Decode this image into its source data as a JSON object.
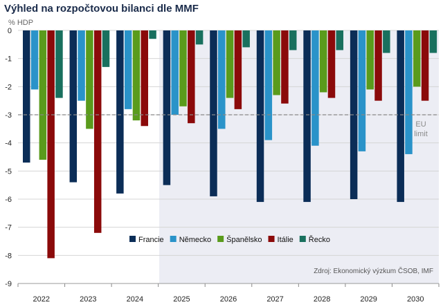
{
  "chart_data": {
    "type": "bar",
    "title": "Výhled na rozpočtovou bilanci dle MMF",
    "ylabel": "% HDP",
    "xlabel": "",
    "ylim": [
      -9,
      0
    ],
    "yticks": [
      0,
      -1,
      -2,
      -3,
      -4,
      -5,
      -6,
      -7,
      -8,
      -9
    ],
    "categories": [
      "2022",
      "2023",
      "2024",
      "2025",
      "2026",
      "2027",
      "2028",
      "2029",
      "2030"
    ],
    "forecast_from": "2025",
    "series": [
      {
        "name": "Francie",
        "color": "#0b2d57",
        "values": [
          -4.7,
          -5.4,
          -5.8,
          -5.5,
          -5.9,
          -6.1,
          -6.1,
          -6.0,
          -6.1
        ]
      },
      {
        "name": "Německo",
        "color": "#2a93c9",
        "values": [
          -2.1,
          -2.5,
          -2.8,
          -3.0,
          -3.5,
          -3.9,
          -4.1,
          -4.3,
          -4.4
        ]
      },
      {
        "name": "Španělsko",
        "color": "#5a9b1c",
        "values": [
          -4.6,
          -3.5,
          -3.2,
          -2.7,
          -2.4,
          -2.3,
          -2.2,
          -2.1,
          -2.0
        ]
      },
      {
        "name": "Itálie",
        "color": "#8b0a0a",
        "values": [
          -8.1,
          -7.2,
          -3.4,
          -3.3,
          -2.8,
          -2.6,
          -2.4,
          -2.5,
          -2.5
        ]
      },
      {
        "name": "Řecko",
        "color": "#19705e",
        "values": [
          -2.4,
          -1.3,
          -0.3,
          -0.5,
          -0.6,
          -0.7,
          -0.7,
          -0.8,
          -0.8
        ]
      }
    ],
    "reference_line": {
      "value": -3,
      "label_line1": "EU",
      "label_line2": "limit"
    },
    "legend_position": "bottom-center",
    "source": "Zdroj: Ekonomický výzkum ČSOB, IMF"
  }
}
